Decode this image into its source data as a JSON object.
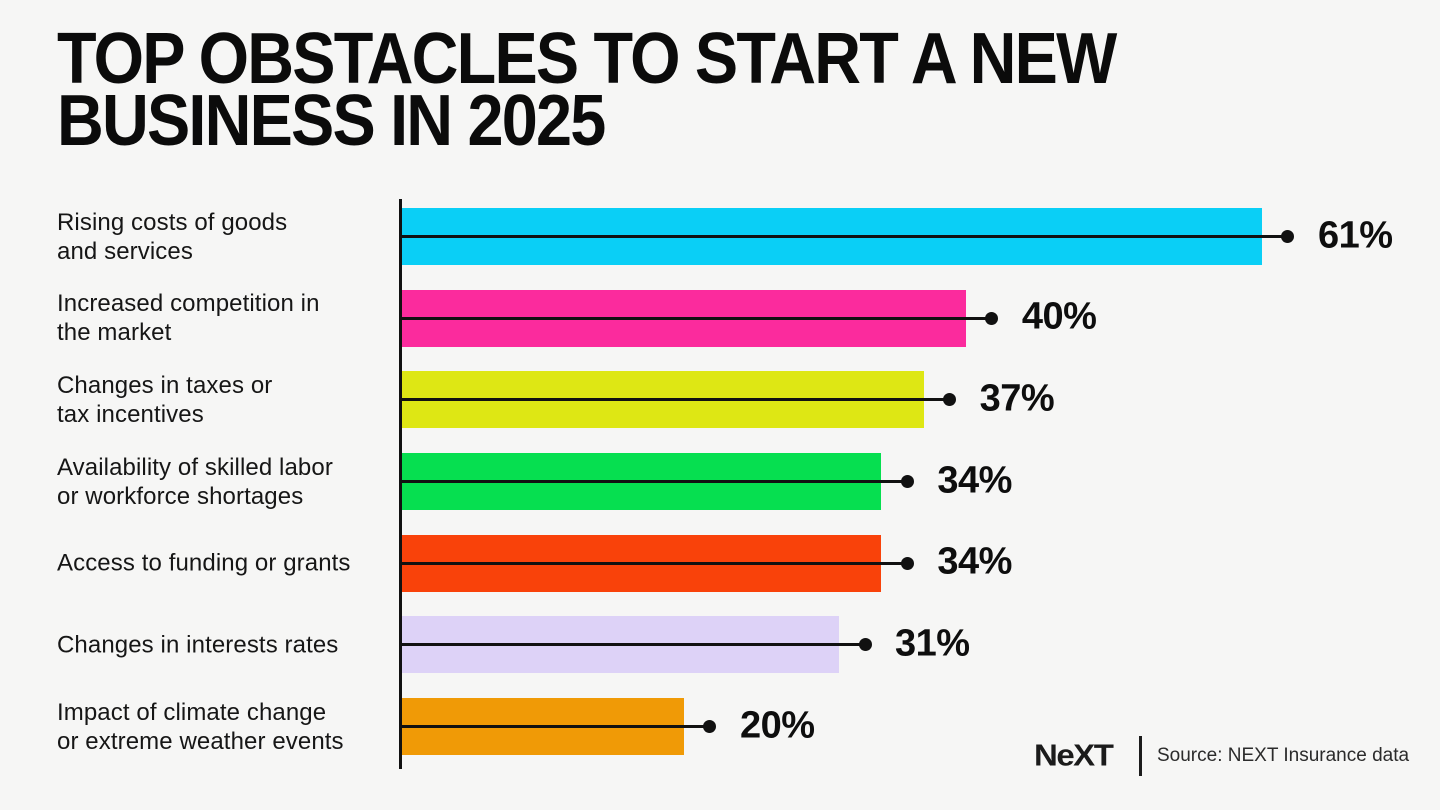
{
  "title": "TOP OBSTACLES TO START A NEW BUSINESS IN 2025",
  "title_lines": [
    "TOP OBSTACLES TO START A NEW",
    "BUSINESS IN 2025"
  ],
  "chart_data": {
    "type": "bar",
    "orientation": "horizontal",
    "title": "Top obstacles to start a new business in 2025",
    "xlabel": "",
    "ylabel": "",
    "xlim": [
      0,
      65
    ],
    "unit": "%",
    "grid": false,
    "legend": "none",
    "categories": [
      "Rising costs of goods and services",
      "Increased competition in the market",
      "Changes in taxes or tax incentives",
      "Availability of skilled labor or workforce shortages",
      "Access to funding or grants",
      "Changes in interests rates",
      "Impact of climate change or extreme weather events"
    ],
    "category_lines": [
      [
        "Rising costs of goods",
        "and services"
      ],
      [
        "Increased competition in",
        "the market"
      ],
      [
        "Changes in taxes or",
        "tax incentives"
      ],
      [
        "Availability of skilled labor",
        "or workforce shortages"
      ],
      [
        "Access to funding or grants"
      ],
      [
        "Changes in interests rates"
      ],
      [
        "Impact of climate change",
        "or extreme weather events"
      ]
    ],
    "values": [
      61,
      40,
      37,
      34,
      34,
      31,
      20
    ],
    "value_labels": [
      "61%",
      "40%",
      "37%",
      "34%",
      "34%",
      "31%",
      "20%"
    ],
    "bar_colors": [
      "#0acff6",
      "#fb2b9d",
      "#dee714",
      "#06df50",
      "#f9420a",
      "#ddd2f7",
      "#f09a06"
    ],
    "axis_color": "#111111",
    "connector_color": "#111111"
  },
  "footer": {
    "logo_text": "NeXT",
    "source_label": "Source: NEXT Insurance data"
  },
  "colors": {
    "background": "#f6f6f5",
    "title_text": "#0b0b0b",
    "label_text": "#161616"
  }
}
